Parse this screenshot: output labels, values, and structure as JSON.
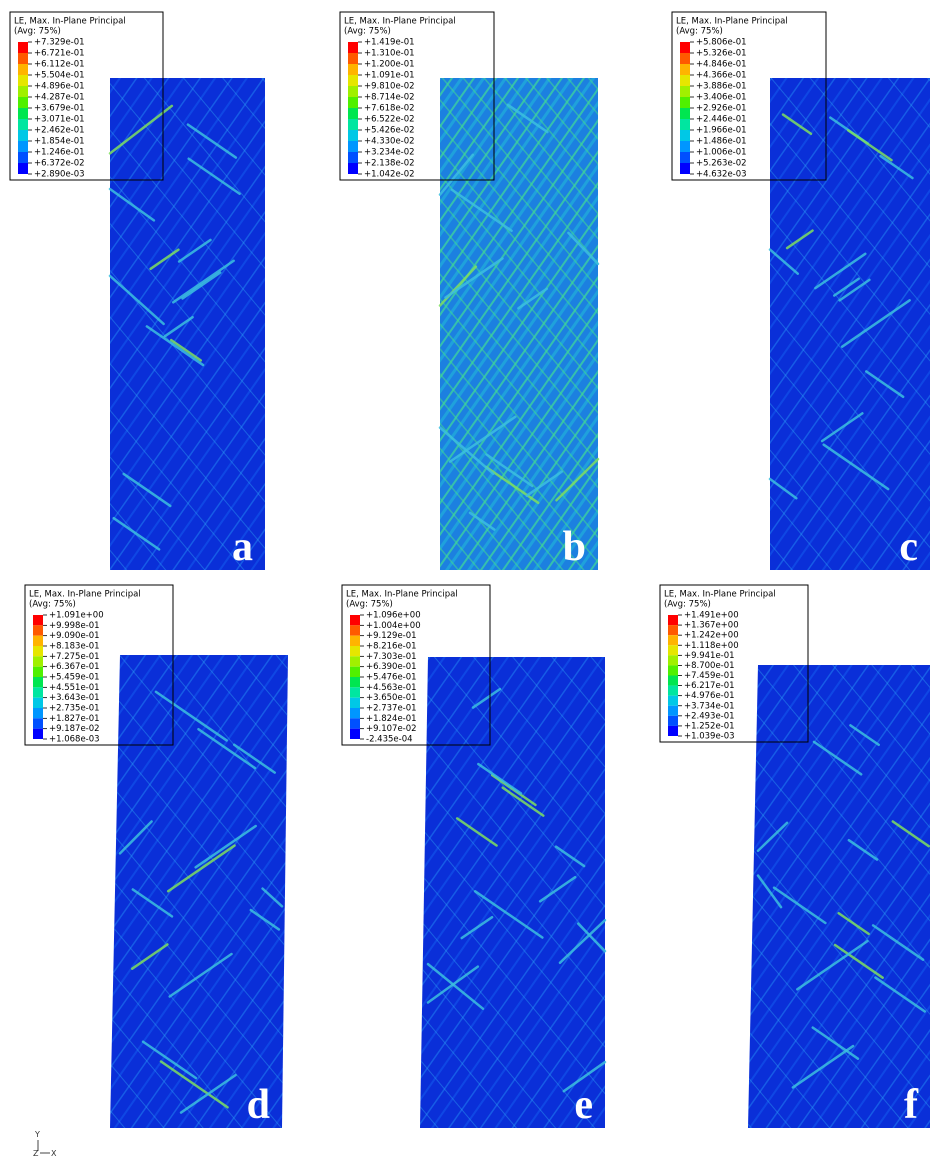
{
  "panels": [
    {
      "label": "a",
      "legend_title": "LE, Max. In-Plane Principal",
      "legend_subtitle": "(Avg: 75%)",
      "legend_values": [
        "+7.329e-01",
        "+6.721e-01",
        "+6.112e-01",
        "+5.504e-01",
        "+4.896e-01",
        "+4.287e-01",
        "+3.679e-01",
        "+3.071e-01",
        "+2.462e-01",
        "+1.854e-01",
        "+1.246e-01",
        "+6.372e-02",
        "+2.890e-03"
      ]
    },
    {
      "label": "b",
      "legend_title": "LE, Max. In-Plane Principal",
      "legend_subtitle": "(Avg: 75%)",
      "legend_values": [
        "+1.419e-01",
        "+1.310e-01",
        "+1.200e-01",
        "+1.091e-01",
        "+9.810e-02",
        "+8.714e-02",
        "+7.618e-02",
        "+6.522e-02",
        "+5.426e-02",
        "+4.330e-02",
        "+3.234e-02",
        "+2.138e-02",
        "+1.042e-02"
      ]
    },
    {
      "label": "c",
      "legend_title": "LE, Max. In-Plane Principal",
      "legend_subtitle": "(Avg: 75%)",
      "legend_values": [
        "+5.806e-01",
        "+5.326e-01",
        "+4.846e-01",
        "+4.366e-01",
        "+3.886e-01",
        "+3.406e-01",
        "+2.926e-01",
        "+2.446e-01",
        "+1.966e-01",
        "+1.486e-01",
        "+1.006e-01",
        "+5.263e-02",
        "+4.632e-03"
      ]
    },
    {
      "label": "d",
      "legend_title": "LE, Max. In-Plane Principal",
      "legend_subtitle": "(Avg: 75%)",
      "legend_values": [
        "+1.091e+00",
        "+9.998e-01",
        "+9.090e-01",
        "+8.183e-01",
        "+7.275e-01",
        "+6.367e-01",
        "+5.459e-01",
        "+4.551e-01",
        "+3.643e-01",
        "+2.735e-01",
        "+1.827e-01",
        "+9.187e-02",
        "+1.068e-03"
      ]
    },
    {
      "label": "e",
      "legend_title": "LE, Max. In-Plane Principal",
      "legend_subtitle": "(Avg: 75%)",
      "legend_values": [
        "+1.096e+00",
        "+1.004e+00",
        "+9.129e-01",
        "+8.216e-01",
        "+7.303e-01",
        "+6.390e-01",
        "+5.476e-01",
        "+4.563e-01",
        "+3.650e-01",
        "+2.737e-01",
        "+1.824e-01",
        "+9.107e-02",
        "-2.435e-04"
      ]
    },
    {
      "label": "f",
      "legend_title": "LE, Max. In-Plane Principal",
      "legend_subtitle": "(Avg: 75%)",
      "legend_values": [
        "+1.491e+00",
        "+1.367e+00",
        "+1.242e+00",
        "+1.118e+00",
        "+9.941e-01",
        "+8.700e-01",
        "+7.459e-01",
        "+6.217e-01",
        "+4.976e-01",
        "+3.734e-01",
        "+2.493e-01",
        "+1.252e-01",
        "+1.039e-03"
      ]
    }
  ],
  "triad": {
    "y": "Y",
    "z": "Z",
    "x": "X"
  }
}
